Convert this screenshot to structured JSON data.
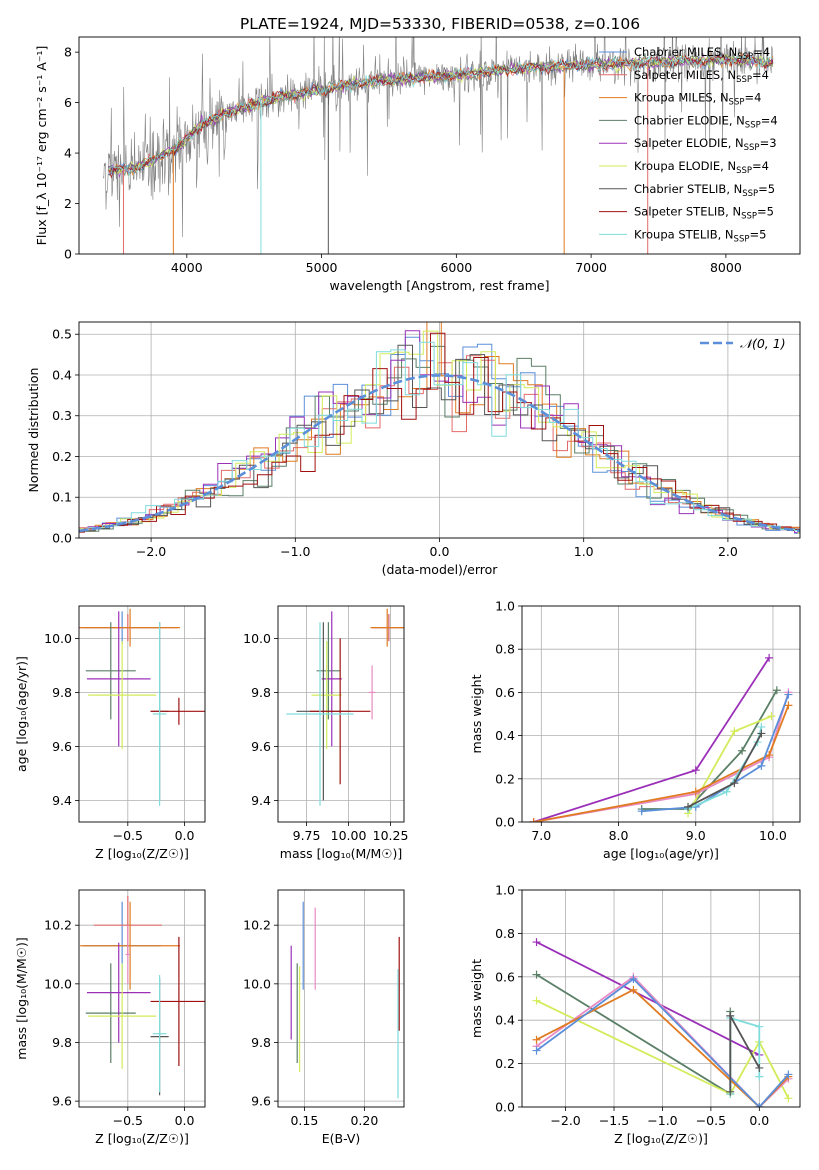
{
  "figure_title": "PLATE=1924, MJD=53330, FIBERID=0538, z=0.106",
  "colors": {
    "chabrier_miles": "#5b8fd9",
    "salpeter_miles": "#e36a6a",
    "kroupa_miles": "#e07b22",
    "chabrier_elodie": "#5a7f66",
    "salpeter_elodie": "#9b30b8",
    "kroupa_elodie": "#d2ec5a",
    "chabrier_stelib": "#555555",
    "salpeter_stelib": "#a01010",
    "kroupa_stelib": "#7fdcdc",
    "data": "#808080",
    "pink": "#e78ac3",
    "normal": "#5b8fd9"
  },
  "chart_data": [
    {
      "id": "spectrum",
      "type": "line",
      "xlabel": "wavelength [Angstrom, rest frame]",
      "ylabel": "Flux [f_λ 10⁻¹⁷ erg cm⁻² s⁻¹ A⁻¹]",
      "xlim": [
        3200,
        8550
      ],
      "ylim": [
        0,
        8.6
      ],
      "xticks": [
        4000,
        5000,
        6000,
        7000,
        8000
      ],
      "yticks": [
        0,
        2,
        4,
        6,
        8
      ],
      "grid": false,
      "legend_position": "right",
      "legend": [
        {
          "name": "Chabrier MILES",
          "n": "4"
        },
        {
          "name": "Salpeter MILES",
          "n": "4"
        },
        {
          "name": "Kroupa MILES",
          "n": "4"
        },
        {
          "name": "Chabrier ELODIE",
          "n": "4"
        },
        {
          "name": "Salpeter ELODIE",
          "n": "3"
        },
        {
          "name": "Kroupa ELODIE",
          "n": "4"
        },
        {
          "name": "Chabrier STELIB",
          "n": "5"
        },
        {
          "name": "Salpeter STELIB",
          "n": "5"
        },
        {
          "name": "Kroupa STELIB",
          "n": "5"
        }
      ],
      "continuum_knots": [
        [
          3380,
          3.3
        ],
        [
          3600,
          3.4
        ],
        [
          3700,
          3.6
        ],
        [
          3850,
          4.0
        ],
        [
          3950,
          4.3
        ],
        [
          4100,
          5.1
        ],
        [
          4300,
          5.6
        ],
        [
          4600,
          6.1
        ],
        [
          4900,
          6.4
        ],
        [
          5200,
          6.7
        ],
        [
          5500,
          6.9
        ],
        [
          5800,
          7.0
        ],
        [
          6200,
          7.2
        ],
        [
          6600,
          7.4
        ],
        [
          7000,
          7.5
        ],
        [
          7500,
          7.6
        ],
        [
          8000,
          7.7
        ],
        [
          8350,
          7.6
        ]
      ]
    },
    {
      "id": "residuals",
      "type": "step",
      "xlabel": "(data-model)/error",
      "ylabel": "Normed distribution",
      "xlim": [
        -2.5,
        2.5
      ],
      "ylim": [
        0,
        0.53
      ],
      "xticks": [
        -2,
        -1,
        0,
        1,
        2
      ],
      "yticks": [
        0.0,
        0.1,
        0.2,
        0.3,
        0.4,
        0.5
      ],
      "grid": true,
      "legend_position": "top-right",
      "normal_label": "𝒩(0, 1)"
    },
    {
      "id": "age_vs_Z",
      "type": "errorbar",
      "xlabel": "Z [log₁₀(Z/Z☉)]",
      "ylabel": "age  [log₁₀(age/yr)]",
      "xlim": [
        -0.93,
        0.18
      ],
      "ylim": [
        9.32,
        10.12
      ],
      "xticks": [
        -0.5,
        0.0
      ],
      "yticks": [
        9.4,
        9.6,
        9.8,
        10.0
      ],
      "grid": true,
      "points": [
        {
          "c": "chabrier_miles",
          "x": -0.55,
          "xe": 0.34,
          "y": 10.04,
          "ye": 0.06
        },
        {
          "c": "salpeter_miles",
          "x": -0.5,
          "xe": 0.44,
          "y": 10.04,
          "ye": 0.05
        },
        {
          "c": "kroupa_miles",
          "x": -0.48,
          "xe": 0.44,
          "y": 10.04,
          "ye": 0.07
        },
        {
          "c": "chabrier_elodie",
          "x": -0.65,
          "xe": 0.22,
          "y": 9.88,
          "ye": 0.18
        },
        {
          "c": "salpeter_elodie",
          "x": -0.58,
          "xe": 0.28,
          "y": 9.85,
          "ye": 0.25
        },
        {
          "c": "kroupa_elodie",
          "x": -0.55,
          "xe": 0.3,
          "y": 9.79,
          "ye": 0.2
        },
        {
          "c": "chabrier_stelib",
          "x": -0.22,
          "xe": 0.08,
          "y": 9.73,
          "ye": 0.33
        },
        {
          "c": "salpeter_stelib",
          "x": -0.05,
          "xe": 0.25,
          "y": 9.73,
          "ye": 0.05
        },
        {
          "c": "kroupa_stelib",
          "x": -0.22,
          "xe": 0.06,
          "y": 9.72,
          "ye": 0.34
        }
      ]
    },
    {
      "id": "age_vs_mass",
      "type": "errorbar",
      "xlabel": "mass [log₁₀(M/M☉)]",
      "ylabel": "",
      "xlim": [
        9.58,
        10.33
      ],
      "ylim": [
        9.32,
        10.12
      ],
      "xticks": [
        9.75,
        10.0,
        10.25
      ],
      "yticks": [
        9.4,
        9.6,
        9.8,
        10.0
      ],
      "grid": true,
      "points": [
        {
          "c": "chabrier_miles",
          "x": 10.24,
          "xe": 0.1,
          "y": 10.04,
          "ye": 0.05
        },
        {
          "c": "salpeter_miles",
          "x": 10.24,
          "xe": 0.1,
          "y": 10.04,
          "ye": 0.05
        },
        {
          "c": "kroupa_miles",
          "x": 10.23,
          "xe": 0.1,
          "y": 10.04,
          "ye": 0.07
        },
        {
          "c": "chabrier_elodie",
          "x": 9.88,
          "xe": 0.07,
          "y": 9.88,
          "ye": 0.18
        },
        {
          "c": "salpeter_elodie",
          "x": 9.9,
          "xe": 0.06,
          "y": 9.85,
          "ye": 0.25
        },
        {
          "c": "kroupa_elodie",
          "x": 9.87,
          "xe": 0.09,
          "y": 9.79,
          "ye": 0.2
        },
        {
          "c": "chabrier_stelib",
          "x": 9.85,
          "xe": 0.16,
          "y": 9.73,
          "ye": 0.33
        },
        {
          "c": "salpeter_stelib",
          "x": 9.95,
          "xe": 0.18,
          "y": 9.73,
          "ye": 0.27
        },
        {
          "c": "kroupa_stelib",
          "x": 9.83,
          "xe": 0.2,
          "y": 9.72,
          "ye": 0.34
        },
        {
          "c": "pink",
          "x": 10.14,
          "xe": 0.02,
          "y": 9.8,
          "ye": 0.1
        }
      ]
    },
    {
      "id": "weight_vs_age",
      "type": "line",
      "xlabel": "age  [log₁₀(age/yr)]",
      "ylabel": "mass weight",
      "xlim": [
        6.75,
        10.35
      ],
      "ylim": [
        0,
        1.0
      ],
      "xticks": [
        7,
        8,
        9,
        10
      ],
      "yticks": [
        0.0,
        0.2,
        0.4,
        0.6,
        0.8,
        1.0
      ],
      "grid": true,
      "series": [
        {
          "c": "salpeter_elodie",
          "x": [
            6.9,
            9.0,
            9.95
          ],
          "y": [
            0.0,
            0.24,
            0.76
          ]
        },
        {
          "c": "chabrier_elodie",
          "x": [
            8.3,
            8.9,
            9.6,
            10.05
          ],
          "y": [
            0.06,
            0.06,
            0.33,
            0.61
          ]
        },
        {
          "c": "kroupa_elodie",
          "x": [
            8.9,
            9.5,
            9.98
          ],
          "y": [
            0.04,
            0.42,
            0.49
          ]
        },
        {
          "c": "pink",
          "x": [
            6.9,
            9.0,
            9.95,
            10.2
          ],
          "y": [
            0.0,
            0.13,
            0.3,
            0.6
          ]
        },
        {
          "c": "kroupa_miles",
          "x": [
            6.9,
            9.0,
            9.95,
            10.2
          ],
          "y": [
            0.0,
            0.14,
            0.31,
            0.54
          ]
        },
        {
          "c": "chabrier_miles",
          "x": [
            8.3,
            9.0,
            9.85,
            10.2
          ],
          "y": [
            0.05,
            0.07,
            0.26,
            0.59
          ]
        },
        {
          "c": "kroupa_stelib",
          "x": [
            8.9,
            9.4,
            9.8,
            9.85
          ],
          "y": [
            0.06,
            0.14,
            0.37,
            0.44
          ]
        },
        {
          "c": "chabrier_stelib",
          "x": [
            8.9,
            9.5,
            9.85
          ],
          "y": [
            0.07,
            0.18,
            0.41
          ]
        }
      ]
    },
    {
      "id": "mass_vs_Z",
      "type": "errorbar",
      "xlabel": "Z [log₁₀(Z/Z☉)]",
      "ylabel": "mass [log₁₀(M/M☉)]",
      "xlim": [
        -0.93,
        0.18
      ],
      "ylim": [
        9.58,
        10.32
      ],
      "xticks": [
        -0.5,
        0.0
      ],
      "yticks": [
        9.6,
        9.8,
        10.0,
        10.2
      ],
      "grid": true,
      "points": [
        {
          "c": "chabrier_miles",
          "x": -0.55,
          "xe": 0.34,
          "y": 10.13,
          "ye": 0.15
        },
        {
          "c": "salpeter_miles",
          "x": -0.5,
          "xe": 0.3,
          "y": 10.2,
          "ye": 0.1
        },
        {
          "c": "kroupa_miles",
          "x": -0.48,
          "xe": 0.44,
          "y": 10.13,
          "ye": 0.15
        },
        {
          "c": "chabrier_elodie",
          "x": -0.65,
          "xe": 0.22,
          "y": 9.9,
          "ye": 0.17
        },
        {
          "c": "salpeter_elodie",
          "x": -0.58,
          "xe": 0.28,
          "y": 9.97,
          "ye": 0.17
        },
        {
          "c": "kroupa_elodie",
          "x": -0.55,
          "xe": 0.3,
          "y": 9.89,
          "ye": 0.18
        },
        {
          "c": "chabrier_stelib",
          "x": -0.22,
          "xe": 0.08,
          "y": 9.82,
          "ye": 0.2
        },
        {
          "c": "salpeter_stelib",
          "x": -0.05,
          "xe": 0.25,
          "y": 9.94,
          "ye": 0.22
        },
        {
          "c": "kroupa_stelib",
          "x": -0.22,
          "xe": 0.06,
          "y": 9.83,
          "ye": 0.2
        },
        {
          "c": "pink",
          "x": -0.5,
          "xe": 0.02,
          "y": 10.1,
          "ye": 0.1
        }
      ]
    },
    {
      "id": "mass_vs_ebv",
      "type": "errorbar",
      "xlabel": "E(B-V)",
      "ylabel": "",
      "xlim": [
        0.128,
        0.233
      ],
      "ylim": [
        9.58,
        10.32
      ],
      "xticks": [
        0.15,
        0.2
      ],
      "yticks": [
        9.6,
        9.8,
        10.0,
        10.2
      ],
      "grid": true,
      "points": [
        {
          "c": "salpeter_elodie",
          "x": 0.139,
          "xe": 0,
          "y": 9.97,
          "ye": 0.16
        },
        {
          "c": "chabrier_elodie",
          "x": 0.144,
          "xe": 0,
          "y": 9.9,
          "ye": 0.17
        },
        {
          "c": "kroupa_elodie",
          "x": 0.146,
          "xe": 0,
          "y": 9.88,
          "ye": 0.18
        },
        {
          "c": "chabrier_miles",
          "x": 0.149,
          "xe": 0,
          "y": 10.13,
          "ye": 0.15
        },
        {
          "c": "pink",
          "x": 0.159,
          "xe": 0,
          "y": 10.12,
          "ye": 0.14
        },
        {
          "c": "salpeter_stelib",
          "x": 0.229,
          "xe": 0,
          "y": 10.0,
          "ye": 0.16
        },
        {
          "c": "kroupa_stelib",
          "x": 0.228,
          "xe": 0,
          "y": 9.83,
          "ye": 0.22
        }
      ]
    },
    {
      "id": "weight_vs_Z",
      "type": "line",
      "xlabel": "Z [log₁₀(Z/Z☉)]",
      "ylabel": "mass weight",
      "xlim": [
        -2.45,
        0.42
      ],
      "ylim": [
        0,
        1.0
      ],
      "xticks": [
        -2.0,
        -1.5,
        -1.0,
        -0.5,
        0.0
      ],
      "yticks": [
        0.0,
        0.2,
        0.4,
        0.6,
        0.8,
        1.0
      ],
      "grid": true,
      "series": [
        {
          "c": "salpeter_elodie",
          "x": [
            -2.3,
            0.0
          ],
          "y": [
            0.76,
            0.24
          ]
        },
        {
          "c": "chabrier_elodie",
          "x": [
            -2.3,
            -0.3,
            -0.3
          ],
          "y": [
            0.61,
            0.06,
            0.44
          ]
        },
        {
          "c": "kroupa_elodie",
          "x": [
            -2.3,
            -0.3,
            0.0,
            0.3
          ],
          "y": [
            0.49,
            0.06,
            0.3,
            0.04
          ]
        },
        {
          "c": "pink",
          "x": [
            -2.3,
            -1.3,
            0.0,
            0.3
          ],
          "y": [
            0.28,
            0.6,
            0.0,
            0.13
          ]
        },
        {
          "c": "kroupa_miles",
          "x": [
            -2.3,
            -1.3,
            0.0,
            0.3
          ],
          "y": [
            0.31,
            0.54,
            0.0,
            0.14
          ]
        },
        {
          "c": "chabrier_miles",
          "x": [
            -2.3,
            -1.3,
            0.0,
            0.3
          ],
          "y": [
            0.26,
            0.59,
            0.0,
            0.15
          ]
        },
        {
          "c": "kroupa_stelib",
          "x": [
            -0.3,
            -0.3,
            0.0,
            0.0
          ],
          "y": [
            0.06,
            0.41,
            0.37,
            0.14
          ]
        },
        {
          "c": "chabrier_stelib",
          "x": [
            -0.3,
            -0.3,
            0.0
          ],
          "y": [
            0.07,
            0.42,
            0.18
          ]
        }
      ]
    }
  ]
}
